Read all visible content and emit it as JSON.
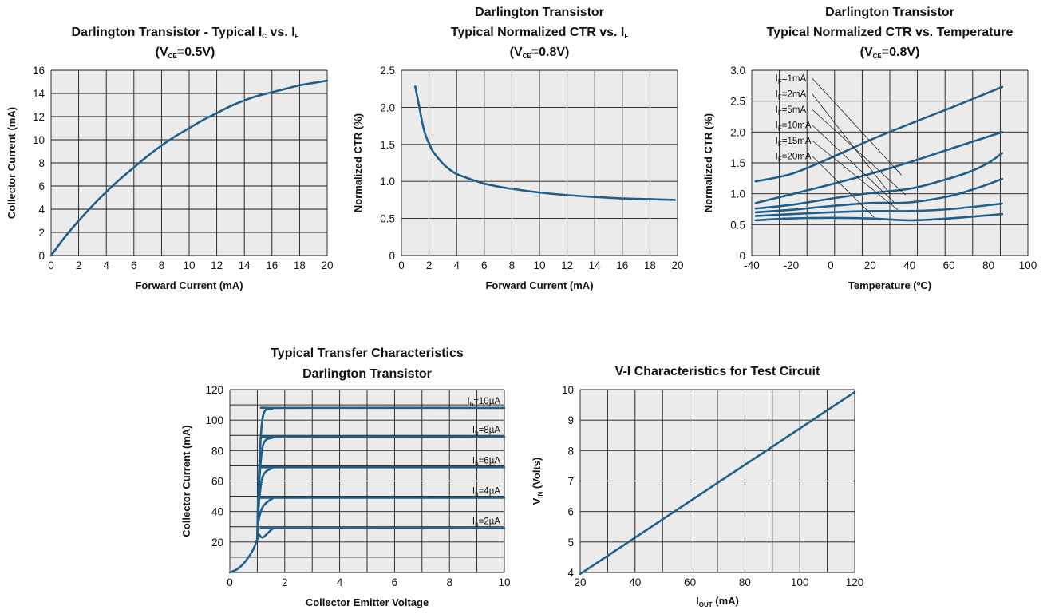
{
  "chart_data": [
    {
      "id": "c1",
      "type": "line",
      "title_parts": [
        {
          "t": "Darlington Transistor - Typical I"
        },
        {
          "t": "C",
          "sub": true
        },
        {
          "t": " vs. I"
        },
        {
          "t": "F",
          "sub": true
        }
      ],
      "title_line2_parts": [
        {
          "t": "(V"
        },
        {
          "t": "CE",
          "sub": true
        },
        {
          "t": "=0.5V)"
        }
      ],
      "xlabel": "Forward Current (mA)",
      "ylabel": "Collector Current (mA)",
      "xlim": [
        0,
        20
      ],
      "ylim": [
        0,
        16
      ],
      "xticks": [
        0,
        2,
        4,
        6,
        8,
        10,
        12,
        14,
        16,
        18,
        20
      ],
      "yticks": [
        0,
        2,
        4,
        6,
        8,
        10,
        12,
        14,
        16
      ],
      "grid": true,
      "series": [
        {
          "x": [
            0,
            1,
            2,
            3,
            4,
            5,
            6,
            7,
            8,
            9,
            10,
            11,
            12,
            13,
            14,
            15,
            16,
            17,
            18,
            19,
            20
          ],
          "y": [
            0,
            1.6,
            3.0,
            4.3,
            5.5,
            6.6,
            7.6,
            8.6,
            9.5,
            10.3,
            11.0,
            11.7,
            12.3,
            12.9,
            13.4,
            13.8,
            14.1,
            14.4,
            14.7,
            14.9,
            15.1
          ]
        }
      ]
    },
    {
      "id": "c2",
      "type": "line",
      "title_parts": [
        {
          "t": "Darlington Transistor"
        }
      ],
      "title_line2_parts": [
        {
          "t": "Typical Normalized CTR vs. I"
        },
        {
          "t": "F",
          "sub": true
        }
      ],
      "title_line3_parts": [
        {
          "t": "(V"
        },
        {
          "t": "CE",
          "sub": true
        },
        {
          "t": "=0.8V)"
        }
      ],
      "xlabel": "Forward Current (mA)",
      "ylabel": "Normalized CTR (%)",
      "xlim": [
        0,
        20
      ],
      "ylim": [
        0,
        2.5
      ],
      "xticks": [
        0,
        2,
        4,
        6,
        8,
        10,
        12,
        14,
        16,
        18,
        20
      ],
      "yticks": [
        0,
        0.5,
        1.0,
        1.5,
        2.0,
        2.5
      ],
      "ytick_labels": [
        "0",
        "0.5",
        "1.0",
        "1.5",
        "2.0",
        "2.5"
      ],
      "grid": true,
      "series": [
        {
          "x": [
            1.0,
            1.3,
            1.6,
            1.9,
            2.0,
            2.2,
            2.5,
            3.0,
            3.5,
            4.0,
            5.0,
            6.0,
            7.0,
            8.0,
            10.0,
            12.0,
            14.0,
            16.0,
            18.0,
            19.8
          ],
          "y": [
            2.28,
            2.0,
            1.72,
            1.55,
            1.52,
            1.43,
            1.35,
            1.24,
            1.16,
            1.1,
            1.03,
            0.97,
            0.93,
            0.9,
            0.85,
            0.815,
            0.79,
            0.77,
            0.76,
            0.75
          ]
        }
      ]
    },
    {
      "id": "c3",
      "type": "line",
      "title_parts": [
        {
          "t": "Darlington Transistor"
        }
      ],
      "title_line2_parts": [
        {
          "t": "Typical Normalized CTR vs. Temperature"
        }
      ],
      "title_line3_parts": [
        {
          "t": "(V"
        },
        {
          "t": "CE",
          "sub": true
        },
        {
          "t": "=0.8V)"
        }
      ],
      "xlabel": "Temperature (ºC)",
      "ylabel": "Normalized CTR (%)",
      "xlim": [
        -40,
        100
      ],
      "ylim": [
        0,
        3.0
      ],
      "xticks": [
        -40,
        -20,
        0,
        20,
        40,
        60,
        80,
        100
      ],
      "yticks": [
        0,
        0.5,
        1.0,
        1.5,
        2.0,
        2.5,
        3.0
      ],
      "ytick_labels": [
        "0",
        "0.5",
        "1.0",
        "1.5",
        "2.0",
        "2.5",
        "3.0"
      ],
      "grid": true,
      "series": [
        {
          "name": "IF=1mA",
          "label": "1mA",
          "x": [
            -38,
            -20,
            0,
            20,
            40,
            60,
            87
          ],
          "y": [
            1.2,
            1.32,
            1.58,
            1.87,
            2.13,
            2.38,
            2.73
          ]
        },
        {
          "name": "IF=2mA",
          "label": "2mA",
          "x": [
            -38,
            -20,
            0,
            20,
            40,
            60,
            87
          ],
          "y": [
            0.85,
            0.99,
            1.15,
            1.32,
            1.51,
            1.72,
            2.0
          ]
        },
        {
          "name": "IF=5mA",
          "label": "5mA",
          "x": [
            -38,
            -20,
            0,
            20,
            40,
            55,
            70,
            80,
            87
          ],
          "y": [
            0.76,
            0.82,
            0.92,
            1.01,
            1.08,
            1.2,
            1.35,
            1.5,
            1.66
          ]
        },
        {
          "name": "IF=10mA",
          "label": "10mA",
          "x": [
            -38,
            -20,
            0,
            20,
            40,
            60,
            75,
            87
          ],
          "y": [
            0.7,
            0.74,
            0.8,
            0.85,
            0.86,
            0.96,
            1.1,
            1.24
          ]
        },
        {
          "name": "IF=15mA",
          "label": "15mA",
          "x": [
            -38,
            -20,
            0,
            20,
            40,
            60,
            87
          ],
          "y": [
            0.64,
            0.67,
            0.7,
            0.72,
            0.72,
            0.75,
            0.84
          ]
        },
        {
          "name": "IF=20mA",
          "label": "20mA",
          "x": [
            -38,
            -20,
            0,
            20,
            40,
            60,
            87
          ],
          "y": [
            0.57,
            0.6,
            0.61,
            0.6,
            0.57,
            0.6,
            0.67
          ]
        }
      ]
    },
    {
      "id": "c4",
      "type": "line",
      "title_parts": [
        {
          "t": "Typical Transfer Characteristics"
        }
      ],
      "title_line2_parts": [
        {
          "t": "Darlington Transistor"
        }
      ],
      "xlabel": "Collector Emitter Voltage",
      "ylabel": "Collector Current (mA)",
      "xlim": [
        0,
        10
      ],
      "ylim": [
        0,
        120
      ],
      "xticks": [
        0,
        2,
        4,
        6,
        8,
        10
      ],
      "yticks": [
        20,
        40,
        60,
        80,
        100,
        120
      ],
      "grid": true,
      "series": [
        {
          "name": "Ib=10µA",
          "label": "10µA",
          "saturation": 108
        },
        {
          "name": "Ib=8µA",
          "label": "8µA",
          "saturation": 89
        },
        {
          "name": "Ib=6µA",
          "label": "6µA",
          "saturation": 69
        },
        {
          "name": "Ib=4µA",
          "label": "4µA",
          "saturation": 49
        },
        {
          "name": "Ib=2µA",
          "label": "2µA",
          "saturation": 29
        }
      ],
      "common_curve": {
        "x": [
          0,
          0.3,
          0.6,
          0.85,
          1.0
        ],
        "y": [
          0,
          2.5,
          8,
          15,
          22
        ]
      }
    },
    {
      "id": "c5",
      "type": "line",
      "title_parts": [
        {
          "t": "V-I Characteristics for Test Circuit"
        }
      ],
      "xlabel_parts": [
        {
          "t": "I"
        },
        {
          "t": "OUT",
          "sub": true
        },
        {
          "t": " (mA)"
        }
      ],
      "ylabel_parts": [
        {
          "t": "V"
        },
        {
          "t": "IN",
          "sub": true
        },
        {
          "t": " (Volts)"
        }
      ],
      "xlim": [
        20,
        120
      ],
      "ylim": [
        4,
        10
      ],
      "xticks": [
        20,
        40,
        60,
        80,
        100,
        120
      ],
      "yticks": [
        4,
        5,
        6,
        7,
        8,
        9,
        10
      ],
      "grid": true,
      "series": [
        {
          "x": [
            20,
            120
          ],
          "y": [
            3.95,
            9.92
          ]
        }
      ]
    }
  ],
  "colors": {
    "curve": "#1f5f8b",
    "plot_bg": "#ebebeb",
    "grid": "#1a1a1a",
    "text": "#111111"
  }
}
